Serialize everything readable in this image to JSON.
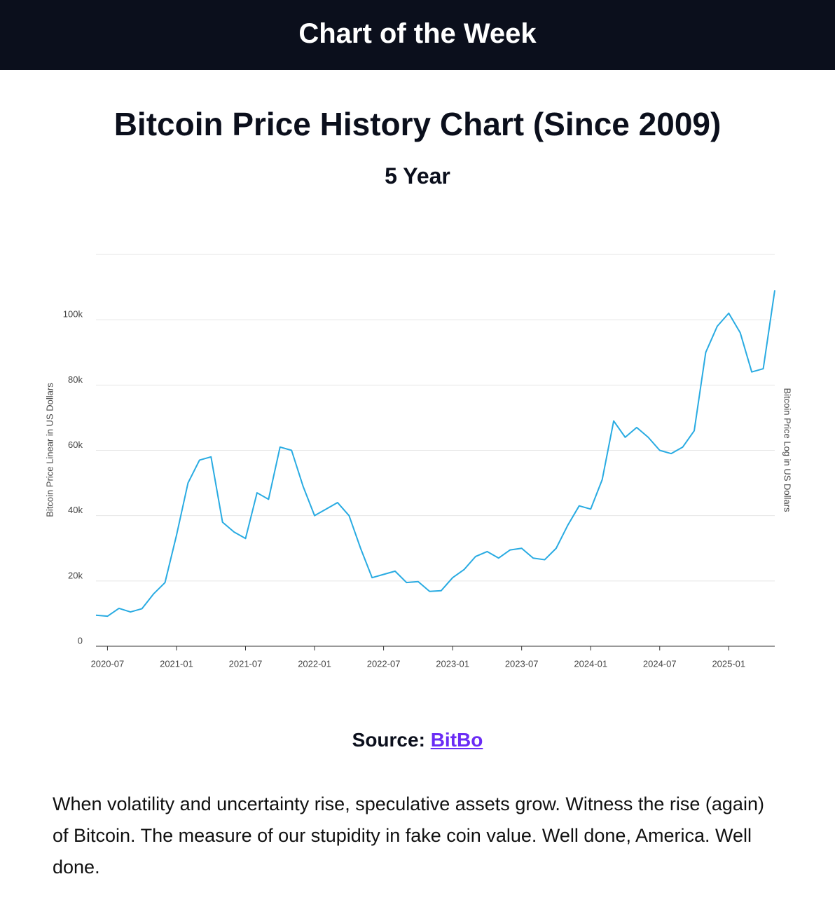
{
  "header": {
    "title": "Chart of the Week"
  },
  "chart_data": {
    "type": "line",
    "title": "Bitcoin Price History Chart (Since 2009)",
    "subtitle": "5 Year",
    "y_label": "Bitcoin Price Linear in US Dollars",
    "y2_label": "Bitcoin Price Log in US Dollars",
    "x": [
      "2020-06",
      "2020-07",
      "2020-08",
      "2020-09",
      "2020-10",
      "2020-11",
      "2020-12",
      "2021-01",
      "2021-02",
      "2021-03",
      "2021-04",
      "2021-05",
      "2021-06",
      "2021-07",
      "2021-08",
      "2021-09",
      "2021-10",
      "2021-11",
      "2021-12",
      "2022-01",
      "2022-02",
      "2022-03",
      "2022-04",
      "2022-05",
      "2022-06",
      "2022-07",
      "2022-08",
      "2022-09",
      "2022-10",
      "2022-11",
      "2022-12",
      "2023-01",
      "2023-02",
      "2023-03",
      "2023-04",
      "2023-05",
      "2023-06",
      "2023-07",
      "2023-08",
      "2023-09",
      "2023-10",
      "2023-11",
      "2023-12",
      "2024-01",
      "2024-02",
      "2024-03",
      "2024-04",
      "2024-05",
      "2024-06",
      "2024-07",
      "2024-08",
      "2024-09",
      "2024-10",
      "2024-11",
      "2024-12",
      "2025-01",
      "2025-02",
      "2025-03",
      "2025-04",
      "2025-05"
    ],
    "series": [
      {
        "name": "Bitcoin Price",
        "color": "#29abe2",
        "values": [
          9500,
          9200,
          11600,
          10500,
          11500,
          16000,
          19500,
          34000,
          50000,
          57000,
          58000,
          38000,
          35000,
          33000,
          47000,
          45000,
          61000,
          60000,
          49000,
          40000,
          42000,
          44000,
          40000,
          30000,
          21000,
          22000,
          23000,
          19500,
          19800,
          16800,
          17000,
          21000,
          23500,
          27500,
          29000,
          27000,
          29500,
          30000,
          27000,
          26500,
          30000,
          37000,
          43000,
          42000,
          51000,
          69000,
          64000,
          67000,
          64000,
          60000,
          59000,
          61000,
          66000,
          90000,
          98000,
          102000,
          96000,
          84000,
          85000,
          109000
        ]
      }
    ],
    "xlim": [
      "2020-06",
      "2025-05"
    ],
    "xticks": [
      "2020-07",
      "2021-01",
      "2021-07",
      "2022-01",
      "2022-07",
      "2023-01",
      "2023-07",
      "2024-01",
      "2024-07",
      "2025-01"
    ],
    "ylim": [
      0,
      120000
    ],
    "yticks": [
      0,
      {
        "value": 20000,
        "label": "20k"
      },
      {
        "value": 40000,
        "label": "40k"
      },
      {
        "value": 60000,
        "label": "60k"
      },
      {
        "value": 80000,
        "label": "80k"
      },
      {
        "value": 100000,
        "label": "100k"
      }
    ],
    "grid": true
  },
  "source": {
    "label": "Source:",
    "link": "BitBo"
  },
  "body": {
    "text": "When volatility and uncertainty rise, speculative assets grow. Witness the rise (again) of Bitcoin. The measure of our stupidity in fake coin value. Well done, America. Well done."
  }
}
